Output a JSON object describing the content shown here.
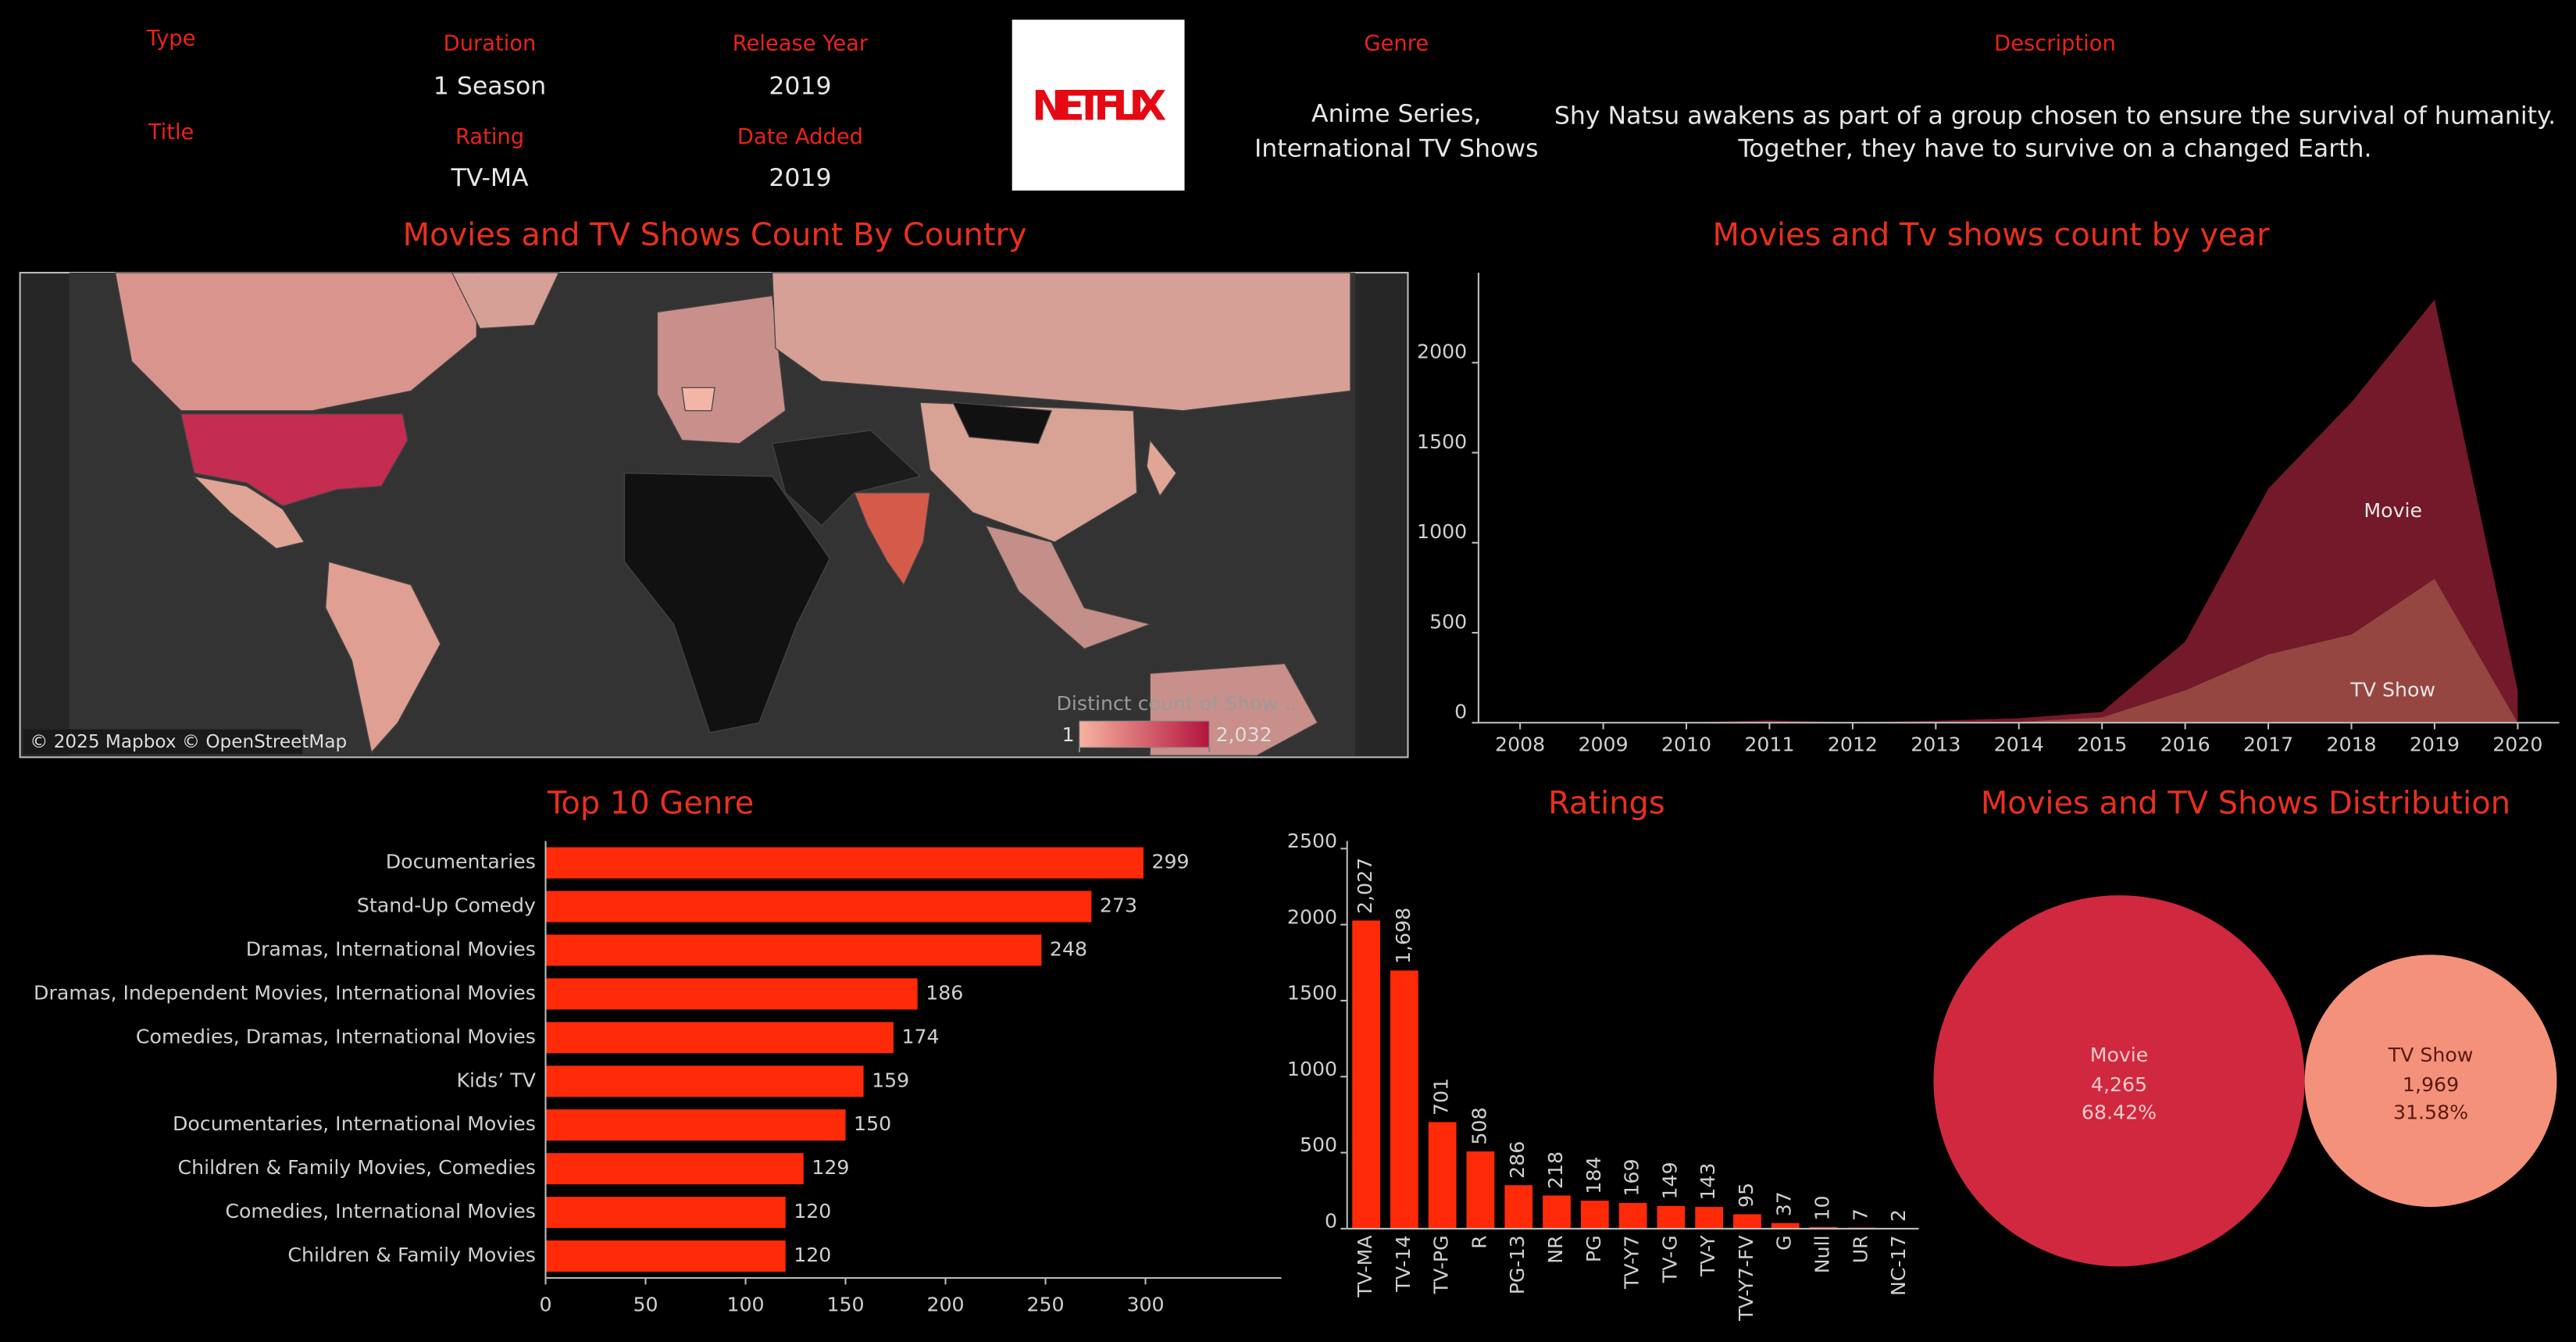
{
  "header": {
    "type_label": "Type",
    "title_label": "Title",
    "duration": {
      "label": "Duration",
      "value": "1 Season"
    },
    "rating": {
      "label": "Rating",
      "value": "TV-MA"
    },
    "release_year": {
      "label": "Release Year",
      "value": "2019"
    },
    "date_added": {
      "label": "Date Added",
      "value": "2019"
    },
    "logo": "NETFLIX",
    "genre": {
      "label": "Genre",
      "lines": [
        "Anime Series,",
        "International TV Shows"
      ]
    },
    "description": {
      "label": "Description",
      "lines": [
        "Shy Natsu awakens as part of a group chosen to ensure the survival of humanity.",
        "Together, they have to survive on a changed Earth."
      ]
    }
  },
  "chart_data": [
    {
      "type": "map",
      "title": "Movies and TV Shows Count By Country",
      "legend_title": "Distinct count of Show ..",
      "colorbar": {
        "range": [
          1,
          2032
        ],
        "ticks": [
          1,
          {
            "value": 2032,
            "label": "2,032"
          }
        ],
        "colors": [
          "#f7b3a0",
          "#b3143d"
        ]
      },
      "attribution": "© 2025 Mapbox © OpenStreetMap"
    },
    {
      "type": "area",
      "title": "Movies and Tv shows count by year",
      "stacked": true,
      "x": [
        2008,
        2009,
        2010,
        2011,
        2012,
        2013,
        2014,
        2015,
        2016,
        2017,
        2018,
        2019,
        2020
      ],
      "series": [
        {
          "name": "TV Show",
          "color": "#9e4a45",
          "values": [
            1,
            2,
            1,
            0,
            0,
            5,
            6,
            30,
            180,
            380,
            490,
            800,
            0
          ]
        },
        {
          "name": "Movie",
          "color": "#7a1a2c",
          "values": [
            1,
            0,
            1,
            13,
            3,
            6,
            19,
            30,
            270,
            920,
            1290,
            1550,
            180
          ]
        }
      ],
      "xlim": [
        2007.5,
        2020.5
      ],
      "xticks": [
        2008,
        2009,
        2010,
        2011,
        2012,
        2013,
        2014,
        2015,
        2016,
        2017,
        2018,
        2019,
        2020
      ],
      "ylim": [
        0,
        2500
      ],
      "yticks": [
        0,
        500,
        1000,
        1500,
        2000
      ]
    },
    {
      "type": "bar",
      "orientation": "horizontal",
      "title": "Top 10 Genre",
      "color": "#ff2a08",
      "categories": [
        "Documentaries",
        "Stand-Up Comedy",
        "Dramas, International Movies",
        "Dramas, Independent Movies, International Movies",
        "Comedies, Dramas, International Movies",
        "Kids’ TV",
        "Documentaries, International Movies",
        "Children & Family Movies, Comedies",
        "Comedies, International Movies",
        "Children & Family Movies"
      ],
      "values": [
        299,
        273,
        248,
        186,
        174,
        159,
        150,
        129,
        120,
        120
      ],
      "xlim": [
        0,
        368
      ],
      "xticks": [
        0,
        50,
        100,
        150,
        200,
        250,
        300
      ]
    },
    {
      "type": "bar",
      "orientation": "vertical",
      "title": "Ratings",
      "color": "#ff2a08",
      "categories": [
        "TV-MA",
        "TV-14",
        "TV-PG",
        "R",
        "PG-13",
        "NR",
        "PG",
        "TV-Y7",
        "TV-G",
        "TV-Y",
        "TV-Y7-FV",
        "G",
        "Null",
        "UR",
        "NC-17"
      ],
      "values": [
        2027,
        1698,
        701,
        508,
        286,
        218,
        184,
        169,
        149,
        143,
        95,
        37,
        10,
        7,
        2
      ],
      "value_labels": [
        "2,027",
        "1,698",
        "701",
        "508",
        "286",
        "218",
        "184",
        "169",
        "149",
        "143",
        "95",
        "37",
        "10",
        "7",
        "2"
      ],
      "ylim": [
        0,
        2550
      ],
      "yticks": [
        0,
        500,
        1000,
        1500,
        2000,
        2500
      ]
    },
    {
      "type": "bubble",
      "title": "Movies and TV Shows Distribution",
      "categories": [
        "Movie",
        "TV Show"
      ],
      "colors": [
        "#d0283e",
        "#f4917a"
      ],
      "values": [
        4265,
        1969
      ],
      "value_labels": [
        "4,265",
        "1,969"
      ],
      "shares": [
        68.42,
        31.58
      ],
      "share_labels": [
        "68.42%",
        "31.58%"
      ]
    }
  ]
}
